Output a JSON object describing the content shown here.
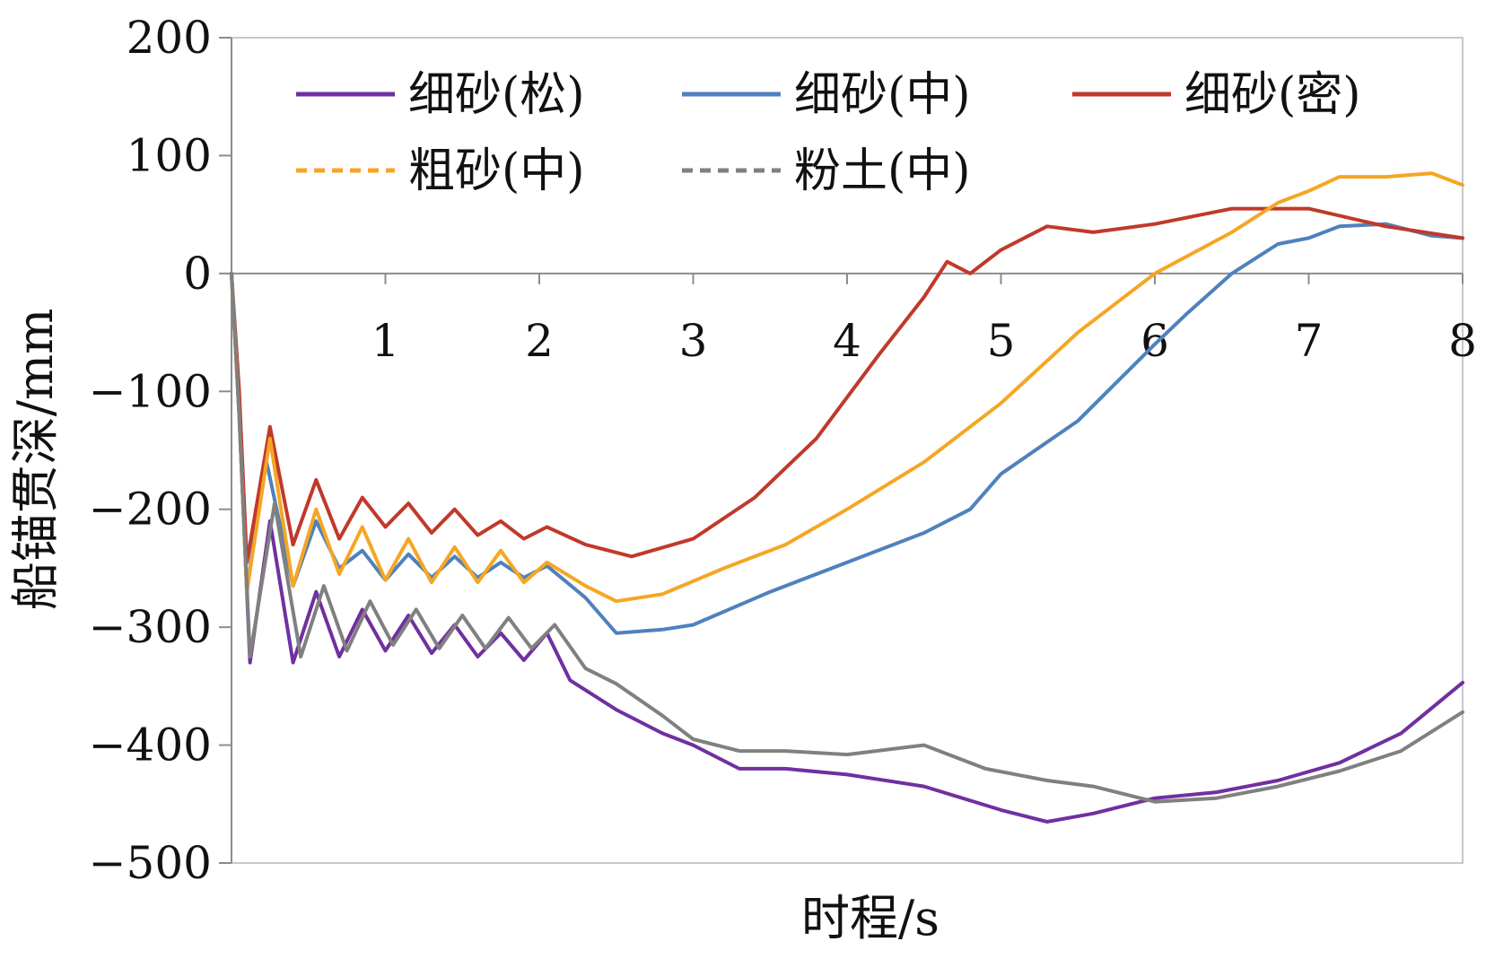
{
  "chart_data": {
    "type": "line",
    "title": "",
    "xlabel": "时程/s",
    "ylabel": "船锚贯深/mm",
    "xlim": [
      0,
      8
    ],
    "ylim": [
      -500,
      200
    ],
    "x_ticks": [
      "1",
      "2",
      "3",
      "4",
      "5",
      "6",
      "7",
      "8"
    ],
    "y_ticks": [
      "200",
      "100",
      "0",
      "−100",
      "−200",
      "−300",
      "−400",
      "−500"
    ],
    "grid": false,
    "legend_position": "top",
    "series": [
      {
        "name": "细砂(松)",
        "color": "#7030a0",
        "dashed": false,
        "points": [
          [
            0,
            0
          ],
          [
            0.05,
            -120
          ],
          [
            0.12,
            -330
          ],
          [
            0.25,
            -210
          ],
          [
            0.4,
            -330
          ],
          [
            0.55,
            -270
          ],
          [
            0.7,
            -325
          ],
          [
            0.85,
            -285
          ],
          [
            1.0,
            -320
          ],
          [
            1.15,
            -290
          ],
          [
            1.3,
            -322
          ],
          [
            1.45,
            -298
          ],
          [
            1.6,
            -325
          ],
          [
            1.75,
            -305
          ],
          [
            1.9,
            -328
          ],
          [
            2.05,
            -305
          ],
          [
            2.2,
            -345
          ],
          [
            2.5,
            -370
          ],
          [
            2.8,
            -390
          ],
          [
            3.0,
            -400
          ],
          [
            3.3,
            -420
          ],
          [
            3.6,
            -420
          ],
          [
            4.0,
            -425
          ],
          [
            4.5,
            -435
          ],
          [
            5.0,
            -455
          ],
          [
            5.3,
            -465
          ],
          [
            5.6,
            -458
          ],
          [
            6.0,
            -445
          ],
          [
            6.4,
            -440
          ],
          [
            6.8,
            -430
          ],
          [
            7.2,
            -415
          ],
          [
            7.6,
            -390
          ],
          [
            8.0,
            -347
          ]
        ]
      },
      {
        "name": "细砂(中)",
        "color": "#4f81bd",
        "dashed": false,
        "points": [
          [
            0,
            0
          ],
          [
            0.05,
            -120
          ],
          [
            0.1,
            -270
          ],
          [
            0.22,
            -155
          ],
          [
            0.4,
            -265
          ],
          [
            0.55,
            -210
          ],
          [
            0.7,
            -250
          ],
          [
            0.85,
            -235
          ],
          [
            1.0,
            -260
          ],
          [
            1.15,
            -238
          ],
          [
            1.3,
            -258
          ],
          [
            1.45,
            -240
          ],
          [
            1.6,
            -258
          ],
          [
            1.75,
            -245
          ],
          [
            1.9,
            -258
          ],
          [
            2.05,
            -248
          ],
          [
            2.3,
            -275
          ],
          [
            2.5,
            -305
          ],
          [
            2.8,
            -302
          ],
          [
            3.0,
            -298
          ],
          [
            3.5,
            -270
          ],
          [
            4.0,
            -245
          ],
          [
            4.5,
            -220
          ],
          [
            4.8,
            -200
          ],
          [
            5.0,
            -170
          ],
          [
            5.5,
            -125
          ],
          [
            6.0,
            -60
          ],
          [
            6.2,
            -35
          ],
          [
            6.5,
            0
          ],
          [
            6.8,
            25
          ],
          [
            7.0,
            30
          ],
          [
            7.2,
            40
          ],
          [
            7.5,
            42
          ],
          [
            7.8,
            32
          ],
          [
            8.0,
            30
          ]
        ]
      },
      {
        "name": "细砂(密)",
        "color": "#c0392b",
        "dashed": false,
        "points": [
          [
            0,
            0
          ],
          [
            0.05,
            -100
          ],
          [
            0.1,
            -245
          ],
          [
            0.25,
            -130
          ],
          [
            0.4,
            -230
          ],
          [
            0.55,
            -175
          ],
          [
            0.7,
            -225
          ],
          [
            0.85,
            -190
          ],
          [
            1.0,
            -215
          ],
          [
            1.15,
            -195
          ],
          [
            1.3,
            -220
          ],
          [
            1.45,
            -200
          ],
          [
            1.6,
            -222
          ],
          [
            1.75,
            -210
          ],
          [
            1.9,
            -225
          ],
          [
            2.05,
            -215
          ],
          [
            2.3,
            -230
          ],
          [
            2.6,
            -240
          ],
          [
            3.0,
            -225
          ],
          [
            3.4,
            -190
          ],
          [
            3.8,
            -140
          ],
          [
            4.2,
            -70
          ],
          [
            4.5,
            -20
          ],
          [
            4.65,
            10
          ],
          [
            4.8,
            0
          ],
          [
            5.0,
            20
          ],
          [
            5.3,
            40
          ],
          [
            5.6,
            35
          ],
          [
            6.0,
            42
          ],
          [
            6.5,
            55
          ],
          [
            7.0,
            55
          ],
          [
            7.5,
            40
          ],
          [
            8.0,
            30
          ]
        ]
      },
      {
        "name": "粗砂(中)",
        "color": "#f5a623",
        "dashed": true,
        "points": [
          [
            0,
            0
          ],
          [
            0.05,
            -120
          ],
          [
            0.1,
            -270
          ],
          [
            0.25,
            -140
          ],
          [
            0.4,
            -265
          ],
          [
            0.55,
            -200
          ],
          [
            0.7,
            -255
          ],
          [
            0.85,
            -215
          ],
          [
            1.0,
            -260
          ],
          [
            1.15,
            -225
          ],
          [
            1.3,
            -262
          ],
          [
            1.45,
            -232
          ],
          [
            1.6,
            -262
          ],
          [
            1.75,
            -235
          ],
          [
            1.9,
            -262
          ],
          [
            2.05,
            -245
          ],
          [
            2.3,
            -265
          ],
          [
            2.5,
            -278
          ],
          [
            2.8,
            -272
          ],
          [
            3.2,
            -250
          ],
          [
            3.6,
            -230
          ],
          [
            4.0,
            -200
          ],
          [
            4.5,
            -160
          ],
          [
            5.0,
            -110
          ],
          [
            5.5,
            -50
          ],
          [
            6.0,
            0
          ],
          [
            6.5,
            35
          ],
          [
            6.8,
            60
          ],
          [
            7.0,
            70
          ],
          [
            7.2,
            82
          ],
          [
            7.5,
            82
          ],
          [
            7.8,
            85
          ],
          [
            8.0,
            75
          ]
        ]
      },
      {
        "name": "粉土(中)",
        "color": "#808080",
        "dashed": true,
        "points": [
          [
            0,
            0
          ],
          [
            0.05,
            -120
          ],
          [
            0.12,
            -325
          ],
          [
            0.28,
            -195
          ],
          [
            0.45,
            -325
          ],
          [
            0.6,
            -265
          ],
          [
            0.75,
            -320
          ],
          [
            0.9,
            -278
          ],
          [
            1.05,
            -315
          ],
          [
            1.2,
            -285
          ],
          [
            1.35,
            -318
          ],
          [
            1.5,
            -290
          ],
          [
            1.65,
            -318
          ],
          [
            1.8,
            -292
          ],
          [
            1.95,
            -318
          ],
          [
            2.1,
            -298
          ],
          [
            2.3,
            -335
          ],
          [
            2.5,
            -348
          ],
          [
            2.8,
            -375
          ],
          [
            3.0,
            -395
          ],
          [
            3.3,
            -405
          ],
          [
            3.6,
            -405
          ],
          [
            4.0,
            -408
          ],
          [
            4.5,
            -400
          ],
          [
            4.9,
            -420
          ],
          [
            5.3,
            -430
          ],
          [
            5.6,
            -435
          ],
          [
            6.0,
            -448
          ],
          [
            6.4,
            -445
          ],
          [
            6.8,
            -435
          ],
          [
            7.2,
            -422
          ],
          [
            7.6,
            -405
          ],
          [
            8.0,
            -372
          ]
        ]
      }
    ]
  }
}
